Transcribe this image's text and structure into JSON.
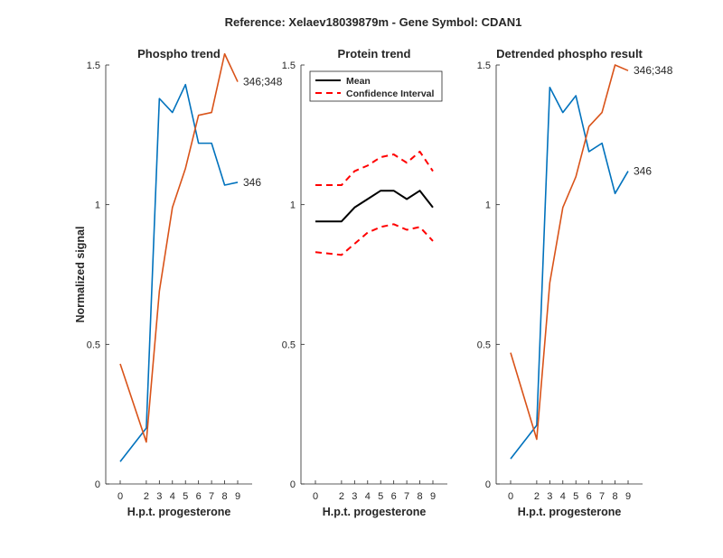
{
  "figure": {
    "suptitle": "Reference:  Xelaev18039879m - Gene Symbol:  CDAN1"
  },
  "colors": {
    "blue": "#0072BD",
    "orange": "#D95319",
    "black": "#000000",
    "red": "#FF0000",
    "axis": "#262626"
  },
  "chart_data": [
    {
      "type": "line",
      "title": "Phospho trend",
      "xlabel": "H.p.t. progesterone",
      "ylabel": "Normalized signal",
      "x": [
        0,
        2,
        3,
        4,
        5,
        6,
        7,
        8,
        9
      ],
      "xticks": [
        "0",
        "2",
        "3",
        "4",
        "5",
        "6",
        "7",
        "8",
        "9"
      ],
      "ylim": [
        0,
        1.5
      ],
      "yticks": [
        "0",
        "0.5",
        "1",
        "1.5"
      ],
      "series": [
        {
          "name": "346",
          "color": "#0072BD",
          "values": [
            0.08,
            0.2,
            1.38,
            1.33,
            1.43,
            1.22,
            1.22,
            1.07,
            1.08
          ]
        },
        {
          "name": "346;348",
          "color": "#D95319",
          "values": [
            0.43,
            0.15,
            0.69,
            0.99,
            1.13,
            1.32,
            1.33,
            1.54,
            1.44
          ]
        }
      ]
    },
    {
      "type": "line",
      "title": "Protein trend",
      "xlabel": "H.p.t. progesterone",
      "ylabel": "",
      "x": [
        0,
        2,
        3,
        4,
        5,
        6,
        7,
        8,
        9
      ],
      "xticks": [
        "0",
        "2",
        "3",
        "4",
        "5",
        "6",
        "7",
        "8",
        "9"
      ],
      "ylim": [
        0,
        1.5
      ],
      "yticks": [
        "0",
        "0.5",
        "1",
        "1.5"
      ],
      "legend": {
        "location": "top-left"
      },
      "series": [
        {
          "name": "Mean",
          "color": "#000000",
          "style": "solid",
          "values": [
            0.94,
            0.94,
            0.99,
            1.02,
            1.05,
            1.05,
            1.02,
            1.05,
            0.99
          ]
        },
        {
          "name": "Confidence Interval",
          "color": "#FF0000",
          "style": "dashed",
          "values": [
            1.07,
            1.07,
            1.12,
            1.14,
            1.17,
            1.18,
            1.15,
            1.19,
            1.12
          ]
        },
        {
          "name": "",
          "color": "#FF0000",
          "style": "dashed",
          "values": [
            0.83,
            0.82,
            0.86,
            0.9,
            0.92,
            0.93,
            0.91,
            0.92,
            0.87
          ]
        }
      ]
    },
    {
      "type": "line",
      "title": "Detrended phospho result",
      "xlabel": "H.p.t. progesterone",
      "ylabel": "",
      "x": [
        0,
        2,
        3,
        4,
        5,
        6,
        7,
        8,
        9
      ],
      "xticks": [
        "0",
        "2",
        "3",
        "4",
        "5",
        "6",
        "7",
        "8",
        "9"
      ],
      "ylim": [
        0,
        1.5
      ],
      "yticks": [
        "0",
        "0.5",
        "1",
        "1.5"
      ],
      "series": [
        {
          "name": "346",
          "color": "#0072BD",
          "values": [
            0.09,
            0.21,
            1.42,
            1.33,
            1.39,
            1.19,
            1.22,
            1.04,
            1.12
          ]
        },
        {
          "name": "346;348",
          "color": "#D95319",
          "values": [
            0.47,
            0.16,
            0.72,
            0.99,
            1.1,
            1.28,
            1.33,
            1.5,
            1.48
          ]
        }
      ]
    }
  ]
}
